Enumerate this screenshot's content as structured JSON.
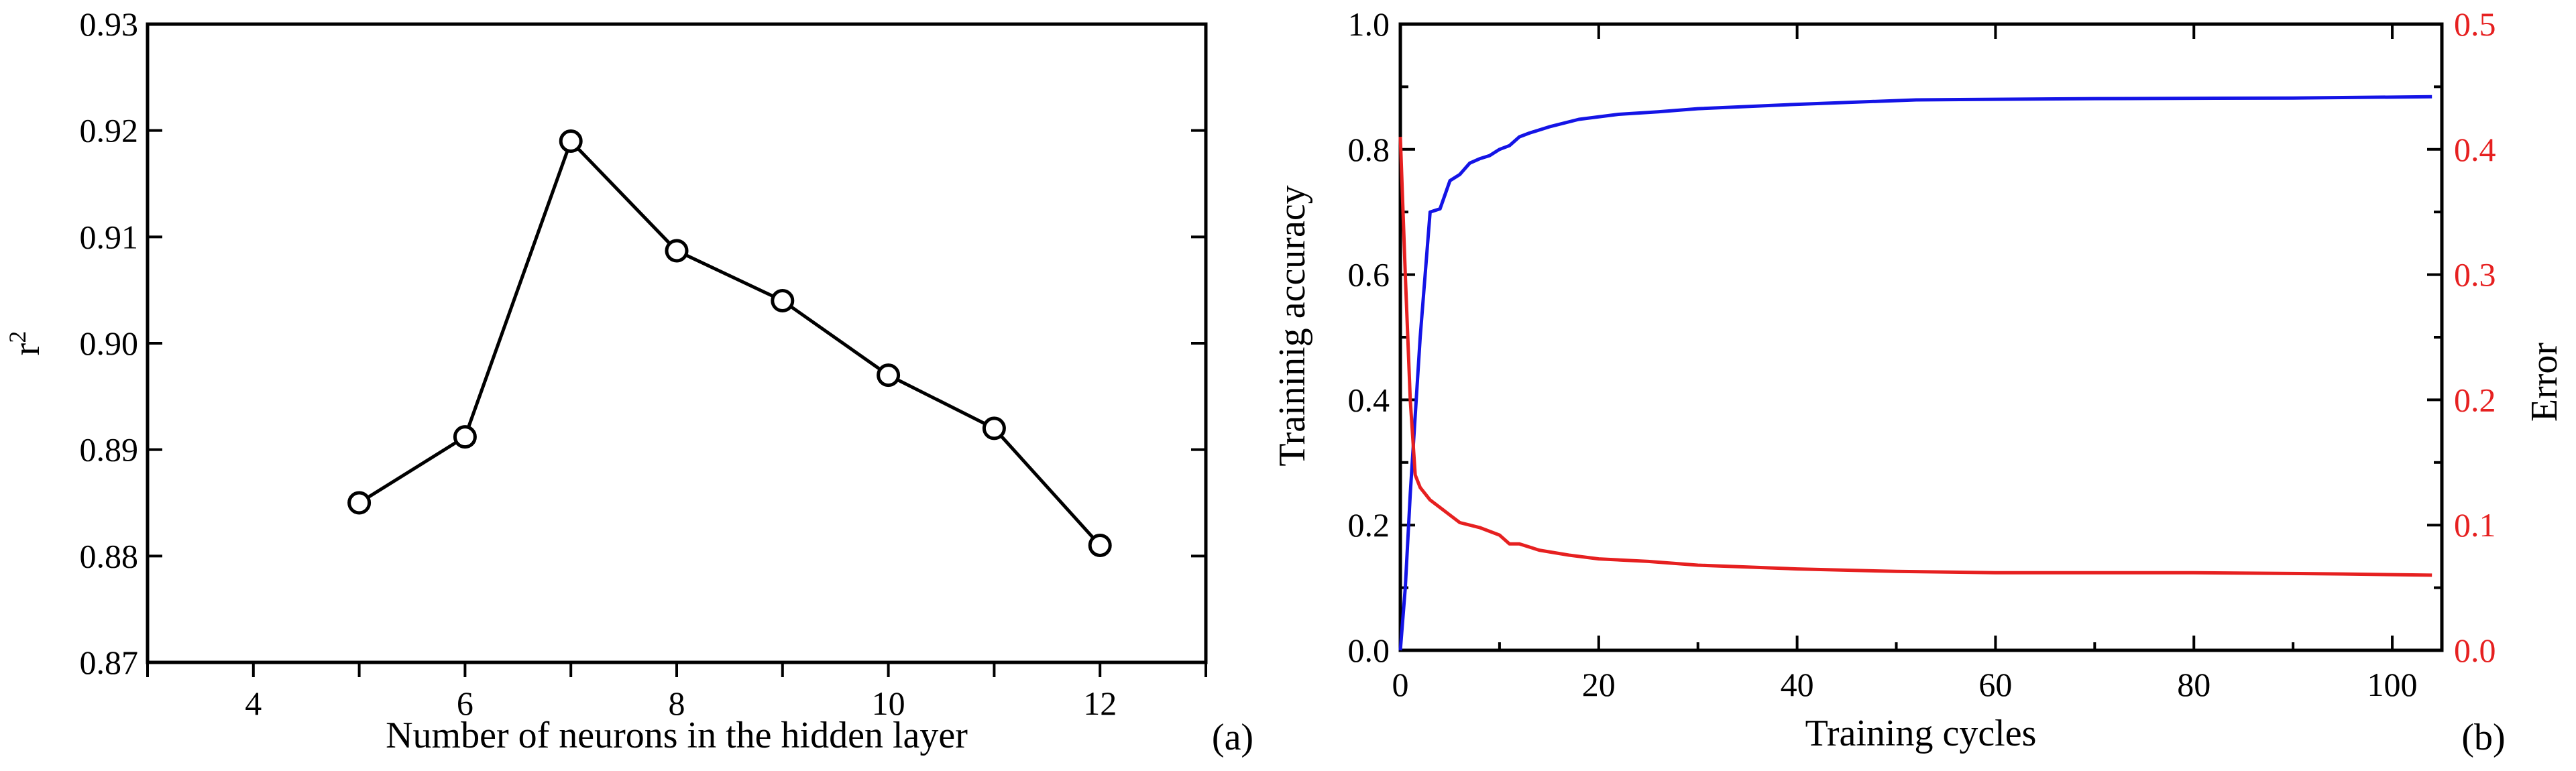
{
  "chart_data": [
    {
      "panel": "(a)",
      "type": "line",
      "xlabel": "Number of neurons in the hidden layer",
      "ylabel": "r",
      "ylabel_sup": "2",
      "xlim": [
        3,
        13
      ],
      "ylim": [
        0.87,
        0.93
      ],
      "xticks": [
        4,
        6,
        8,
        10,
        12
      ],
      "yticks": [
        0.87,
        0.88,
        0.89,
        0.9,
        0.91,
        0.92,
        0.93
      ],
      "ytick_labels": [
        "0.87",
        "0.88",
        "0.89",
        "0.90",
        "0.91",
        "0.92",
        "0.93"
      ],
      "series": [
        {
          "name": "r2",
          "color": "#000000",
          "marker": "open-circle",
          "x": [
            5,
            6,
            7,
            8,
            9,
            10,
            11,
            12
          ],
          "y": [
            0.885,
            0.8912,
            0.919,
            0.9087,
            0.904,
            0.897,
            0.892,
            0.881
          ]
        }
      ]
    },
    {
      "panel": "(b)",
      "type": "line",
      "xlabel": "Training cycles",
      "ylabel": "Traininig accuracy",
      "y2label": "Error",
      "xlim": [
        0,
        105
      ],
      "ylim": [
        0,
        1.0
      ],
      "y2lim": [
        0,
        0.5
      ],
      "xticks": [
        0,
        20,
        40,
        60,
        80,
        100
      ],
      "yticks": [
        0.0,
        0.2,
        0.4,
        0.6,
        0.8,
        1.0
      ],
      "ytick_labels": [
        "0.0",
        "0.2",
        "0.4",
        "0.6",
        "0.8",
        "1.0"
      ],
      "y2ticks": [
        0.0,
        0.1,
        0.2,
        0.3,
        0.4,
        0.5
      ],
      "y2tick_labels": [
        "0.0",
        "0.1",
        "0.2",
        "0.3",
        "0.4",
        "0.5"
      ],
      "series": [
        {
          "name": "Training accuracy",
          "axis": "left",
          "color": "#1414e6",
          "x": [
            0,
            0.5,
            1,
            2,
            3,
            4,
            5,
            6,
            7,
            8,
            9,
            10,
            11,
            12,
            13,
            15,
            18,
            22,
            26,
            30,
            40,
            52,
            70,
            90,
            104
          ],
          "y": [
            0.0,
            0.1,
            0.25,
            0.5,
            0.7,
            0.705,
            0.75,
            0.76,
            0.778,
            0.785,
            0.79,
            0.8,
            0.806,
            0.82,
            0.826,
            0.836,
            0.848,
            0.856,
            0.86,
            0.865,
            0.872,
            0.879,
            0.881,
            0.882,
            0.884
          ]
        },
        {
          "name": "Error",
          "axis": "right",
          "color": "#e62020",
          "x": [
            0,
            0.5,
            1,
            1.5,
            2,
            3,
            4,
            5,
            6,
            7,
            8,
            9,
            10,
            11,
            12,
            14,
            17,
            20,
            25,
            30,
            40,
            50,
            60,
            80,
            95,
            104
          ],
          "y": [
            0.41,
            0.3,
            0.2,
            0.14,
            0.13,
            0.12,
            0.114,
            0.108,
            0.102,
            0.1,
            0.098,
            0.095,
            0.092,
            0.085,
            0.085,
            0.08,
            0.076,
            0.073,
            0.071,
            0.068,
            0.065,
            0.063,
            0.062,
            0.062,
            0.061,
            0.06
          ]
        }
      ]
    }
  ],
  "panel_labels": {
    "a": "(a)",
    "b": "(b)"
  }
}
